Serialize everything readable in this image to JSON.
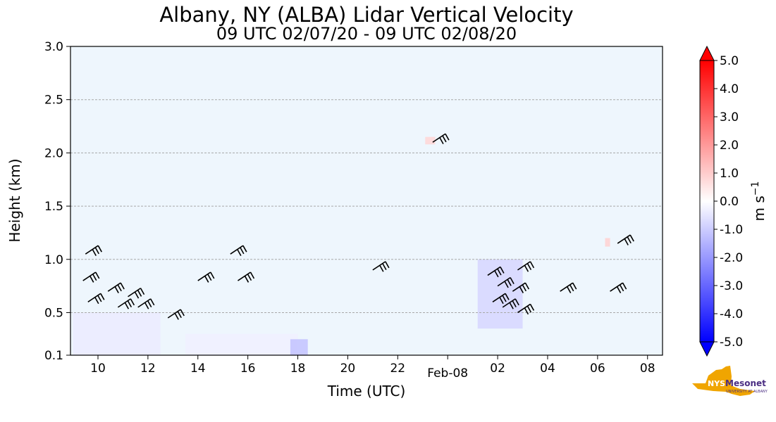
{
  "chart_data": {
    "type": "heatmap",
    "title": "Albany, NY (ALBA) Lidar Vertical Velocity",
    "subtitle": "09 UTC 02/07/20 - 09 UTC 02/08/20",
    "xlabel": "Time (UTC)",
    "ylabel": "Height (km)",
    "x_ticks": [
      "10",
      "12",
      "14",
      "16",
      "18",
      "20",
      "22",
      "Feb-08",
      "02",
      "04",
      "06",
      "08"
    ],
    "x_tick_hours": [
      10,
      12,
      14,
      16,
      18,
      20,
      22,
      24,
      26,
      28,
      30,
      32
    ],
    "xlim_hours": [
      8.9,
      32.6
    ],
    "y_ticks": [
      "0.1",
      "0.5",
      "1.0",
      "1.5",
      "2.0",
      "2.5",
      "3.0"
    ],
    "y_tick_values": [
      0.1,
      0.5,
      1.0,
      1.5,
      2.0,
      2.5,
      3.0
    ],
    "ylim": [
      0.1,
      3.0
    ],
    "grid": "horizontal dashed",
    "background_color": "#eef6fd",
    "colorbar": {
      "label": "m s",
      "label_exponent": "−1",
      "range": [
        -5.0,
        5.0
      ],
      "ticks": [
        "5.0",
        "4.0",
        "3.0",
        "2.0",
        "1.0",
        "0.0",
        "-1.0",
        "-2.0",
        "-3.0",
        "-4.0",
        "-5.0"
      ],
      "tick_values": [
        5,
        4,
        3,
        2,
        1,
        0,
        -1,
        -2,
        -3,
        -4,
        -5
      ],
      "colors": [
        "#0000ff",
        "#ffffff",
        "#ff0000"
      ]
    },
    "wind_barbs": [
      {
        "t": 9.5,
        "h": 1.05
      },
      {
        "t": 9.4,
        "h": 0.8
      },
      {
        "t": 9.6,
        "h": 0.6
      },
      {
        "t": 10.4,
        "h": 0.7
      },
      {
        "t": 10.8,
        "h": 0.55
      },
      {
        "t": 11.2,
        "h": 0.65
      },
      {
        "t": 11.6,
        "h": 0.55
      },
      {
        "t": 12.8,
        "h": 0.45
      },
      {
        "t": 14.0,
        "h": 0.8
      },
      {
        "t": 15.3,
        "h": 1.05
      },
      {
        "t": 15.6,
        "h": 0.8
      },
      {
        "t": 21.0,
        "h": 0.9
      },
      {
        "t": 23.4,
        "h": 2.1
      },
      {
        "t": 25.6,
        "h": 0.85
      },
      {
        "t": 25.8,
        "h": 0.6
      },
      {
        "t": 26.0,
        "h": 0.75
      },
      {
        "t": 26.2,
        "h": 0.55
      },
      {
        "t": 26.6,
        "h": 0.7
      },
      {
        "t": 26.8,
        "h": 0.9
      },
      {
        "t": 26.8,
        "h": 0.5
      },
      {
        "t": 28.5,
        "h": 0.7
      },
      {
        "t": 30.5,
        "h": 0.7
      },
      {
        "t": 30.8,
        "h": 1.15
      }
    ],
    "velocity_patches": [
      {
        "t0": 9.0,
        "t1": 12.5,
        "h0": 0.1,
        "h1": 0.5,
        "value": -0.4
      },
      {
        "t0": 13.5,
        "t1": 18.0,
        "h0": 0.1,
        "h1": 0.3,
        "value": -0.3
      },
      {
        "t0": 17.7,
        "t1": 18.4,
        "h0": 0.1,
        "h1": 0.25,
        "value": -1.2
      },
      {
        "t0": 25.2,
        "t1": 27.0,
        "h0": 0.35,
        "h1": 1.0,
        "value": -0.8
      },
      {
        "t0": 23.1,
        "t1": 23.5,
        "h0": 2.08,
        "h1": 2.15,
        "value": 0.8
      },
      {
        "t0": 30.3,
        "t1": 30.5,
        "h0": 1.12,
        "h1": 1.2,
        "value": 0.9
      }
    ]
  },
  "branding": {
    "logo_state": "NYS",
    "logo_name": "Mesonet",
    "logo_tagline": "UNIVERSITY AT ALBANY",
    "logo_color": "#f0a500",
    "logo_text_color": "#4b2e83"
  }
}
